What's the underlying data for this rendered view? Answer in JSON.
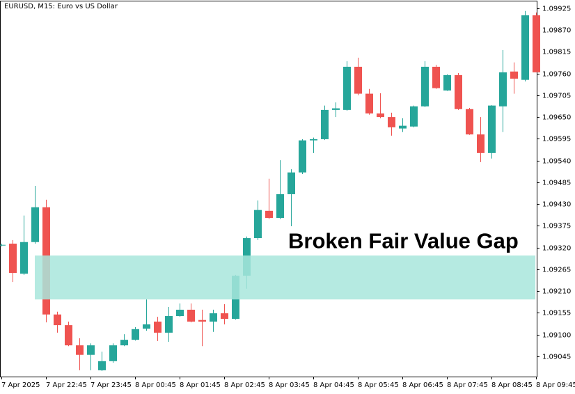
{
  "chart_data": {
    "type": "candlestick",
    "title": "EURUSD, M15:  Euro vs US Dollar",
    "categories": [
      "7 Apr 2025",
      null,
      null,
      null,
      "7 Apr 22:45",
      null,
      null,
      null,
      "7 Apr 23:45",
      null,
      null,
      null,
      "8 Apr 00:45",
      null,
      null,
      null,
      "8 Apr 01:45",
      null,
      null,
      null,
      "8 Apr 02:45",
      null,
      null,
      null,
      "8 Apr 03:45",
      null,
      null,
      null,
      "8 Apr 04:45",
      null,
      null,
      null,
      "8 Apr 05:45",
      null,
      null,
      null,
      "8 Apr 06:45",
      null,
      null,
      null,
      "8 Apr 07:45",
      null,
      null,
      null,
      "8 Apr 08:45",
      null,
      null,
      null,
      "8 Apr 09:45"
    ],
    "open": [
      1.09327,
      1.0933,
      1.09254,
      1.09334,
      1.09422,
      1.09151,
      1.09124,
      1.09073,
      1.09049,
      1.0901,
      1.09033,
      1.09073,
      1.09087,
      1.09115,
      1.09133,
      1.09105,
      1.09147,
      1.09163,
      1.09137,
      1.09133,
      1.09154,
      1.0914,
      1.09249,
      1.09344,
      1.09413,
      1.09395,
      1.09455,
      1.0951,
      1.09591,
      1.09594,
      1.09668,
      1.09668,
      1.09777,
      1.09709,
      1.09659,
      1.0965,
      1.09621,
      1.09626,
      1.09677,
      1.09777,
      1.09717,
      1.09756,
      1.0967,
      1.09606,
      1.09559,
      1.09677,
      1.09765,
      1.09744,
      1.09907
    ],
    "high": [
      1.0933,
      1.09339,
      1.09401,
      1.09476,
      1.09441,
      1.09158,
      1.09133,
      1.09091,
      1.09078,
      1.09057,
      1.09078,
      1.09101,
      1.09119,
      1.09189,
      1.09145,
      1.0917,
      1.09179,
      1.09179,
      1.09163,
      1.09163,
      1.09177,
      1.09251,
      1.09348,
      1.09439,
      1.09494,
      1.09541,
      1.09518,
      1.09594,
      1.09598,
      1.09679,
      1.09687,
      1.09791,
      1.098,
      1.09721,
      1.0971,
      1.09661,
      1.09647,
      1.09679,
      1.09791,
      1.09782,
      1.09758,
      1.09761,
      1.09673,
      1.0965,
      1.0968,
      1.09819,
      1.09788,
      1.09918,
      1.09914
    ],
    "low": [
      1.09323,
      1.09233,
      1.09251,
      1.0933,
      1.09131,
      1.09105,
      1.09071,
      1.0901,
      1.0901,
      1.09008,
      1.09029,
      1.09071,
      1.09085,
      1.0911,
      1.09084,
      1.09082,
      1.09145,
      1.09131,
      1.09071,
      1.09107,
      1.09126,
      1.09138,
      1.09216,
      1.09339,
      1.09392,
      1.09392,
      1.09374,
      1.09506,
      1.09559,
      1.09592,
      1.0965,
      1.09666,
      1.09705,
      1.09656,
      1.09647,
      1.09603,
      1.09612,
      1.09624,
      1.09675,
      1.09721,
      1.09716,
      1.09668,
      1.09605,
      1.09536,
      1.09545,
      1.09612,
      1.09709,
      1.0974,
      1.09763
    ],
    "close": [
      1.09327,
      1.09256,
      1.09334,
      1.09422,
      1.09151,
      1.09124,
      1.09073,
      1.09049,
      1.09073,
      1.09033,
      1.09073,
      1.09087,
      1.09114,
      1.09126,
      1.09105,
      1.09147,
      1.09163,
      1.09133,
      1.09133,
      1.09154,
      1.0914,
      1.09249,
      1.09344,
      1.09415,
      1.09395,
      1.09455,
      1.0951,
      1.09591,
      1.09594,
      1.09668,
      1.09672,
      1.09777,
      1.09709,
      1.09659,
      1.0965,
      1.09624,
      1.09628,
      1.09677,
      1.09777,
      1.09723,
      1.09756,
      1.0967,
      1.09606,
      1.09559,
      1.09679,
      1.09763,
      1.09747,
      1.09907,
      1.09763
    ],
    "up_color": "#26a69a",
    "down_color": "#ef5350",
    "ylim": [
      1.08994,
      1.09944
    ],
    "yticks": [
      1.09925,
      {
        "value": 1.0987,
        "label": "1.09870"
      },
      1.09815,
      {
        "value": 1.0976,
        "label": "1.09760"
      },
      1.09705,
      {
        "value": 1.0965,
        "label": "1.09650"
      },
      1.09595,
      {
        "value": 1.0954,
        "label": "1.09540"
      },
      1.09485,
      {
        "value": 1.0943,
        "label": "1.09430"
      },
      1.09375,
      {
        "value": 1.0932,
        "label": "1.09320"
      },
      1.09265,
      {
        "value": 1.0921,
        "label": "1.09210"
      },
      1.09155,
      {
        "value": 1.091,
        "label": "1.09100"
      },
      1.09045
    ],
    "annotation": {
      "text": "Broken Fair Value Gap",
      "top": 1.093,
      "bottom": 1.09189,
      "color": "#a8e6dc"
    }
  }
}
